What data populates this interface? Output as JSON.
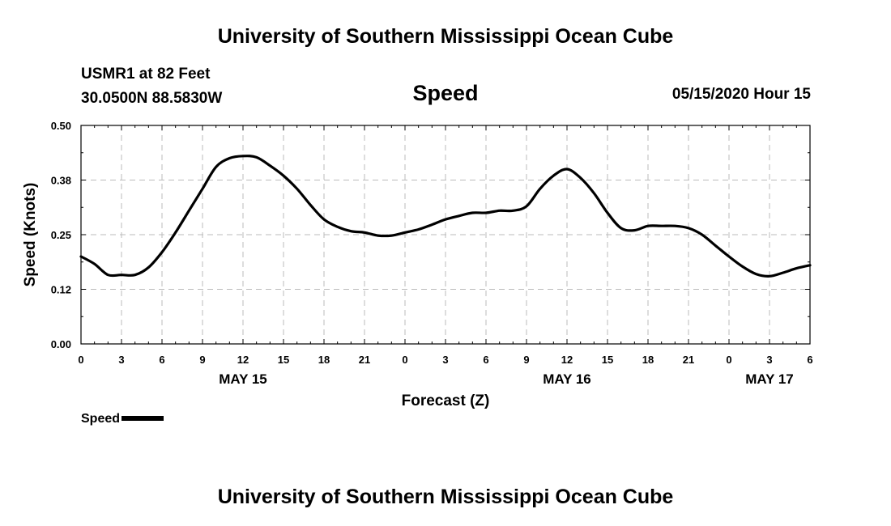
{
  "header": {
    "title": "University of Southern Mississippi Ocean Cube"
  },
  "footer": {
    "title": "University of Southern Mississippi Ocean Cube"
  },
  "station": {
    "name": "USMR1 at 82 Feet",
    "coords": "30.0500N 88.5830W"
  },
  "timestamp": "05/15/2020 Hour 15",
  "legend": {
    "label": "Speed"
  },
  "chart_data": {
    "type": "line",
    "title": "Speed",
    "xlabel": "Forecast (Z)",
    "ylabel": "Speed (Knots)",
    "ylim": [
      0,
      0.5
    ],
    "y_ticks": [
      "0.00",
      "0.12",
      "0.25",
      "0.38",
      "0.50"
    ],
    "x_hours_range": [
      0,
      54
    ],
    "x_tick_labels": [
      "0",
      "3",
      "6",
      "9",
      "12",
      "15",
      "18",
      "21",
      "0",
      "3",
      "6",
      "9",
      "12",
      "15",
      "18",
      "21",
      "0",
      "3",
      "6"
    ],
    "date_labels": [
      {
        "text": "MAY 15",
        "hour": 12
      },
      {
        "text": "MAY 16",
        "hour": 36
      },
      {
        "text": "MAY 17",
        "hour": 51
      }
    ],
    "grid": true,
    "series": [
      {
        "name": "Speed",
        "color": "#000000",
        "x": [
          0,
          1,
          2,
          3,
          4,
          5,
          6,
          7,
          8,
          9,
          10,
          11,
          12,
          13,
          14,
          15,
          16,
          17,
          18,
          19,
          20,
          21,
          22,
          23,
          24,
          25,
          26,
          27,
          28,
          29,
          30,
          31,
          32,
          33,
          34,
          35,
          36,
          37,
          38,
          39,
          40,
          41,
          42,
          43,
          44,
          45,
          46,
          47,
          48,
          49,
          50,
          51,
          52,
          53,
          54
        ],
        "values": [
          0.2,
          0.183,
          0.158,
          0.158,
          0.158,
          0.175,
          0.21,
          0.255,
          0.305,
          0.355,
          0.405,
          0.425,
          0.43,
          0.427,
          0.408,
          0.385,
          0.355,
          0.318,
          0.285,
          0.268,
          0.258,
          0.255,
          0.248,
          0.248,
          0.255,
          0.262,
          0.273,
          0.285,
          0.293,
          0.3,
          0.3,
          0.305,
          0.305,
          0.315,
          0.355,
          0.385,
          0.4,
          0.38,
          0.345,
          0.3,
          0.265,
          0.26,
          0.27,
          0.27,
          0.27,
          0.265,
          0.25,
          0.225,
          0.2,
          0.177,
          0.16,
          0.155,
          0.163,
          0.173,
          0.18
        ]
      }
    ]
  }
}
